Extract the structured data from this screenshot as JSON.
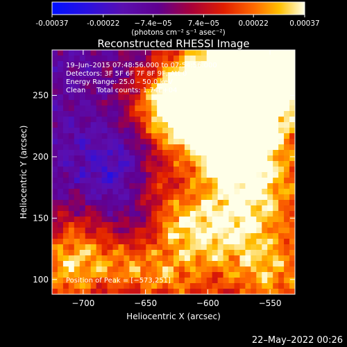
{
  "chart_data": {
    "type": "heatmap",
    "title": "Reconstructed RHESSI Image",
    "xlabel": "Heliocentric X (arcsec)",
    "ylabel": "Heliocentric Y (arcsec)",
    "xlim": [
      -725,
      -530
    ],
    "ylim": [
      88,
      287
    ],
    "x_ticks": [
      -700,
      -650,
      -600,
      -550
    ],
    "x_tick_labels": [
      "−700",
      "−650",
      "−600",
      "−550"
    ],
    "y_ticks": [
      100,
      150,
      200,
      250
    ],
    "y_tick_labels": [
      "100",
      "150",
      "200",
      "250"
    ],
    "colorbar": {
      "range": [
        -0.00037,
        0.00037
      ],
      "ticks": [
        -0.00037,
        -0.00022,
        -7.4e-05,
        7.4e-05,
        0.00022,
        0.00037
      ],
      "tick_labels": [
        "-0.00037",
        "-0.00022",
        "−7.4e−05",
        "7.4e−05",
        "0.00022",
        "0.00037"
      ],
      "units": "(photons cm⁻² s⁻¹ asec⁻²)"
    },
    "annotations": [
      "19–Jun–2015 07:48:56.000 to 07:54:56.000",
      "Detectors: 3F 5F 6F 7F 8F 9F, Att 0",
      "Energy Range: 25.0 – 50.0 keV",
      "Clean     Total counts: 1.74E+04"
    ],
    "peak_label": "Position of Peak = [−573,251]",
    "timestamp": "22–May–2022 00:26"
  }
}
